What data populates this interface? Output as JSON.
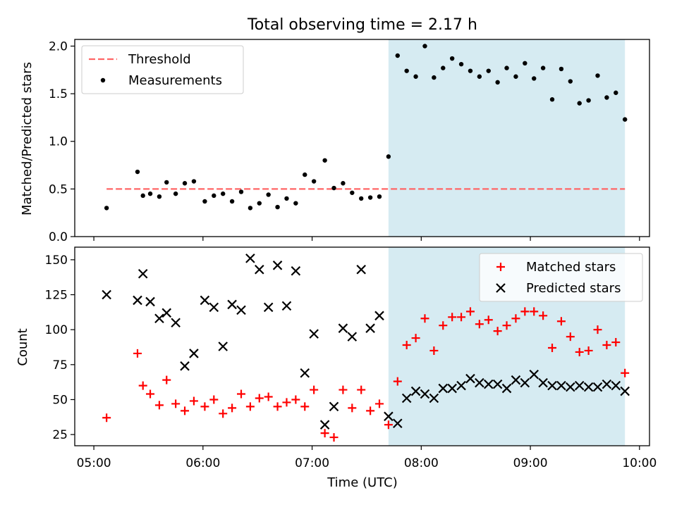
{
  "chart_data": [
    {
      "type": "scatter",
      "title": "Total observing time = 2.17 h",
      "xlabel": "",
      "ylabel": "Matched/Predicted stars",
      "ylim": [
        0,
        2.07
      ],
      "yticks": [
        "0.0",
        "0.5",
        "1.0",
        "1.5",
        "2.0"
      ],
      "ytick_values": [
        0,
        0.5,
        1.0,
        1.5,
        2.0
      ],
      "xlim": [
        "05:00",
        "10:00"
      ],
      "shaded_region": {
        "from": "07:42",
        "to": "09:52",
        "color": "#add8e6"
      },
      "threshold": {
        "name": "Threshold",
        "value": 0.5,
        "from": "05:07",
        "to": "09:52",
        "color": "#ff6666",
        "style": "dashed"
      },
      "legend": {
        "placement": "upper left",
        "entries": [
          "Threshold",
          "Measurements"
        ]
      },
      "series": [
        {
          "name": "Measurements",
          "color": "#000000",
          "marker": "dot",
          "points": [
            [
              "05:07",
              0.3
            ],
            [
              "05:24",
              0.68
            ],
            [
              "05:27",
              0.43
            ],
            [
              "05:31",
              0.45
            ],
            [
              "05:36",
              0.42
            ],
            [
              "05:40",
              0.57
            ],
            [
              "05:45",
              0.45
            ],
            [
              "05:50",
              0.56
            ],
            [
              "05:55",
              0.58
            ],
            [
              "06:01",
              0.37
            ],
            [
              "06:06",
              0.43
            ],
            [
              "06:11",
              0.45
            ],
            [
              "06:16",
              0.37
            ],
            [
              "06:21",
              0.47
            ],
            [
              "06:26",
              0.3
            ],
            [
              "06:31",
              0.35
            ],
            [
              "06:36",
              0.44
            ],
            [
              "06:41",
              0.31
            ],
            [
              "06:46",
              0.4
            ],
            [
              "06:51",
              0.35
            ],
            [
              "06:56",
              0.65
            ],
            [
              "07:01",
              0.58
            ],
            [
              "07:07",
              0.8
            ],
            [
              "07:12",
              0.51
            ],
            [
              "07:17",
              0.56
            ],
            [
              "07:22",
              0.46
            ],
            [
              "07:27",
              0.4
            ],
            [
              "07:32",
              0.41
            ],
            [
              "07:37",
              0.42
            ],
            [
              "07:42",
              0.84
            ],
            [
              "07:47",
              1.9
            ],
            [
              "07:52",
              1.74
            ],
            [
              "07:57",
              1.68
            ],
            [
              "08:02",
              2.0
            ],
            [
              "08:07",
              1.67
            ],
            [
              "08:12",
              1.77
            ],
            [
              "08:17",
              1.87
            ],
            [
              "08:22",
              1.81
            ],
            [
              "08:27",
              1.74
            ],
            [
              "08:32",
              1.68
            ],
            [
              "08:37",
              1.74
            ],
            [
              "08:42",
              1.62
            ],
            [
              "08:47",
              1.77
            ],
            [
              "08:52",
              1.68
            ],
            [
              "08:57",
              1.82
            ],
            [
              "09:02",
              1.66
            ],
            [
              "09:07",
              1.77
            ],
            [
              "09:12",
              1.44
            ],
            [
              "09:17",
              1.76
            ],
            [
              "09:22",
              1.63
            ],
            [
              "09:27",
              1.4
            ],
            [
              "09:32",
              1.43
            ],
            [
              "09:37",
              1.69
            ],
            [
              "09:42",
              1.46
            ],
            [
              "09:47",
              1.51
            ],
            [
              "09:52",
              1.23
            ]
          ]
        }
      ]
    },
    {
      "type": "scatter",
      "title": "",
      "xlabel": "Time (UTC)",
      "ylabel": "Count",
      "ylim": [
        17,
        159
      ],
      "yticks": [
        "25",
        "50",
        "75",
        "100",
        "125",
        "150"
      ],
      "ytick_values": [
        25,
        50,
        75,
        100,
        125,
        150
      ],
      "xlim": [
        "05:00",
        "10:00"
      ],
      "xticks": [
        "05:00",
        "06:00",
        "07:00",
        "08:00",
        "09:00",
        "10:00"
      ],
      "shaded_region": {
        "from": "07:42",
        "to": "09:52",
        "color": "#add8e6"
      },
      "legend": {
        "placement": "upper right",
        "entries": [
          "Matched stars",
          "Predicted stars"
        ]
      },
      "series": [
        {
          "name": "Matched stars",
          "color": "#ff0000",
          "marker": "plus",
          "points": [
            [
              "05:07",
              37
            ],
            [
              "05:24",
              83
            ],
            [
              "05:27",
              60
            ],
            [
              "05:31",
              54
            ],
            [
              "05:36",
              46
            ],
            [
              "05:40",
              64
            ],
            [
              "05:45",
              47
            ],
            [
              "05:50",
              42
            ],
            [
              "05:55",
              49
            ],
            [
              "06:01",
              45
            ],
            [
              "06:06",
              50
            ],
            [
              "06:11",
              40
            ],
            [
              "06:16",
              44
            ],
            [
              "06:21",
              54
            ],
            [
              "06:26",
              45
            ],
            [
              "06:31",
              51
            ],
            [
              "06:36",
              52
            ],
            [
              "06:41",
              45
            ],
            [
              "06:46",
              48
            ],
            [
              "06:51",
              50
            ],
            [
              "06:56",
              45
            ],
            [
              "07:01",
              57
            ],
            [
              "07:07",
              26
            ],
            [
              "07:12",
              23
            ],
            [
              "07:17",
              57
            ],
            [
              "07:22",
              44
            ],
            [
              "07:27",
              57
            ],
            [
              "07:32",
              42
            ],
            [
              "07:37",
              47
            ],
            [
              "07:42",
              32
            ],
            [
              "07:47",
              63
            ],
            [
              "07:52",
              89
            ],
            [
              "07:57",
              94
            ],
            [
              "08:02",
              108
            ],
            [
              "08:07",
              85
            ],
            [
              "08:12",
              103
            ],
            [
              "08:17",
              109
            ],
            [
              "08:22",
              109
            ],
            [
              "08:27",
              113
            ],
            [
              "08:32",
              104
            ],
            [
              "08:37",
              107
            ],
            [
              "08:42",
              99
            ],
            [
              "08:47",
              103
            ],
            [
              "08:52",
              108
            ],
            [
              "08:57",
              113
            ],
            [
              "09:02",
              113
            ],
            [
              "09:07",
              110
            ],
            [
              "09:12",
              87
            ],
            [
              "09:17",
              106
            ],
            [
              "09:22",
              95
            ],
            [
              "09:27",
              84
            ],
            [
              "09:32",
              85
            ],
            [
              "09:37",
              100
            ],
            [
              "09:42",
              89
            ],
            [
              "09:47",
              91
            ],
            [
              "09:52",
              69
            ]
          ]
        },
        {
          "name": "Predicted stars",
          "color": "#000000",
          "marker": "x",
          "points": [
            [
              "05:07",
              125
            ],
            [
              "05:24",
              121
            ],
            [
              "05:27",
              140
            ],
            [
              "05:31",
              120
            ],
            [
              "05:36",
              108
            ],
            [
              "05:40",
              112
            ],
            [
              "05:45",
              105
            ],
            [
              "05:50",
              74
            ],
            [
              "05:55",
              83
            ],
            [
              "06:01",
              121
            ],
            [
              "06:06",
              116
            ],
            [
              "06:11",
              88
            ],
            [
              "06:16",
              118
            ],
            [
              "06:21",
              114
            ],
            [
              "06:26",
              151
            ],
            [
              "06:31",
              143
            ],
            [
              "06:36",
              116
            ],
            [
              "06:41",
              146
            ],
            [
              "06:46",
              117
            ],
            [
              "06:51",
              142
            ],
            [
              "06:56",
              69
            ],
            [
              "07:01",
              97
            ],
            [
              "07:07",
              32
            ],
            [
              "07:12",
              45
            ],
            [
              "07:17",
              101
            ],
            [
              "07:22",
              95
            ],
            [
              "07:27",
              143
            ],
            [
              "07:32",
              101
            ],
            [
              "07:37",
              110
            ],
            [
              "07:42",
              38
            ],
            [
              "07:47",
              33
            ],
            [
              "07:52",
              51
            ],
            [
              "07:57",
              56
            ],
            [
              "08:02",
              54
            ],
            [
              "08:07",
              51
            ],
            [
              "08:12",
              58
            ],
            [
              "08:17",
              58
            ],
            [
              "08:22",
              60
            ],
            [
              "08:27",
              65
            ],
            [
              "08:32",
              62
            ],
            [
              "08:37",
              61
            ],
            [
              "08:42",
              61
            ],
            [
              "08:47",
              58
            ],
            [
              "08:52",
              64
            ],
            [
              "08:57",
              62
            ],
            [
              "09:02",
              68
            ],
            [
              "09:07",
              62
            ],
            [
              "09:12",
              60
            ],
            [
              "09:17",
              60
            ],
            [
              "09:22",
              59
            ],
            [
              "09:27",
              60
            ],
            [
              "09:32",
              59
            ],
            [
              "09:37",
              59
            ],
            [
              "09:42",
              61
            ],
            [
              "09:47",
              60
            ],
            [
              "09:52",
              56
            ]
          ]
        }
      ]
    }
  ]
}
